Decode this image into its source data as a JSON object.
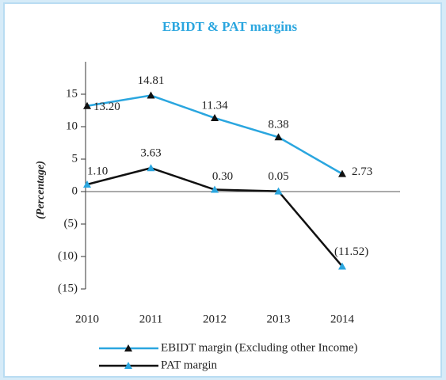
{
  "chart_data": {
    "type": "line",
    "title": "EBIDT & PAT margins",
    "y_label": "(Percentage)",
    "categories": [
      "2010",
      "2011",
      "2012",
      "2013",
      "2014"
    ],
    "series": [
      {
        "name": "EBIDT margin (Excluding other Income)",
        "color": "#2aa6df",
        "marker_color": "#111111",
        "values": [
          13.2,
          14.81,
          11.34,
          8.38,
          2.73
        ],
        "value_labels": [
          "13.20",
          "14.81",
          "11.34",
          "8.38",
          "2.73"
        ]
      },
      {
        "name": "PAT margin",
        "color": "#111111",
        "marker_color": "#2aa6df",
        "values": [
          1.1,
          3.63,
          0.3,
          0.05,
          -11.52
        ],
        "value_labels": [
          "1.10",
          "3.63",
          "0.30",
          "0.05",
          "(11.52)"
        ]
      }
    ],
    "ylim": [
      -15,
      20
    ],
    "yticks": [
      15,
      10,
      5,
      0,
      {
        "value": -5,
        "label": "(5)"
      },
      {
        "value": -10,
        "label": "(10)"
      },
      {
        "value": -15,
        "label": "(15)"
      }
    ]
  }
}
